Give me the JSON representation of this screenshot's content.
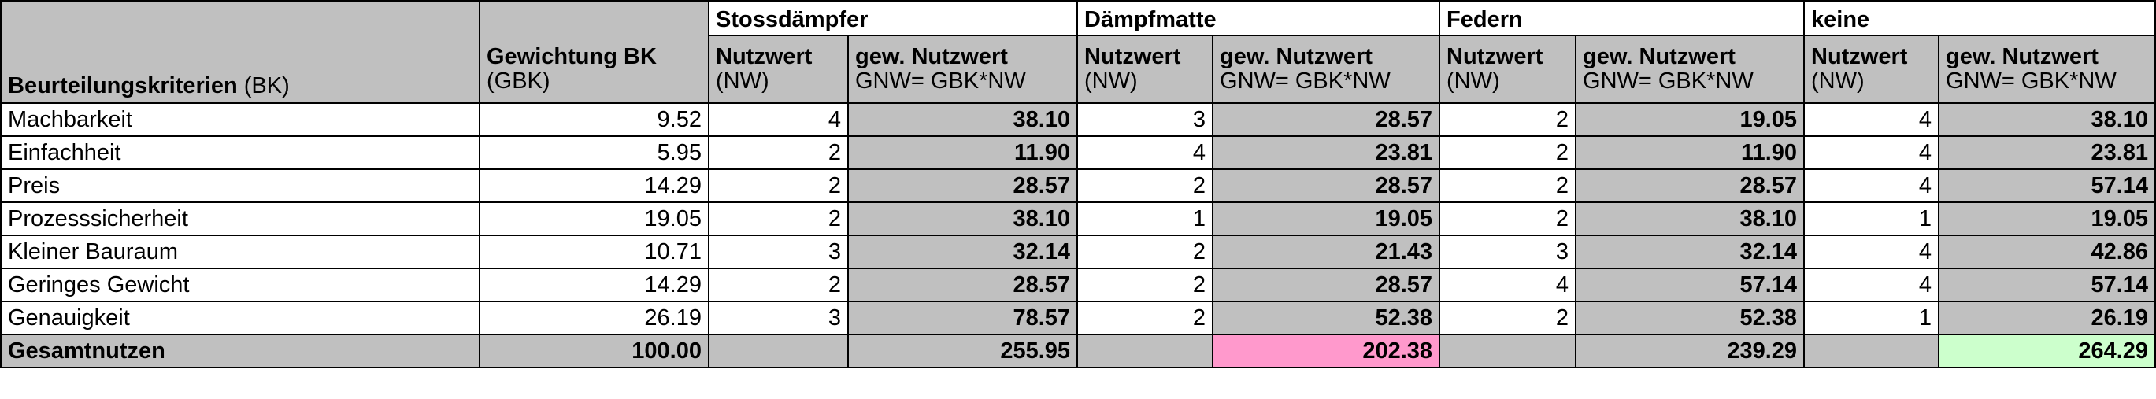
{
  "header": {
    "criteria_bold": "Beurteilungskriterien",
    "criteria_abbr": " (BK)",
    "weight_label": "Gewichtung BK",
    "weight_abbr": "(GBK)",
    "nutzwert_label": "Nutzwert",
    "nutzwert_abbr": "(NW)",
    "gnw_label": "gew. Nutzwert",
    "gnw_formula": "GNW= GBK*NW",
    "variants": [
      "Stossdämpfer",
      "Dämpfmatte",
      "Federn",
      "keine"
    ]
  },
  "rows": [
    {
      "criterion": "Machbarkeit",
      "weight": "9.52",
      "nw": [
        "4",
        "3",
        "2",
        "4"
      ],
      "gnw": [
        "38.10",
        "28.57",
        "19.05",
        "38.10"
      ]
    },
    {
      "criterion": "Einfachheit",
      "weight": "5.95",
      "nw": [
        "2",
        "4",
        "2",
        "4"
      ],
      "gnw": [
        "11.90",
        "23.81",
        "11.90",
        "23.81"
      ]
    },
    {
      "criterion": "Preis",
      "weight": "14.29",
      "nw": [
        "2",
        "2",
        "2",
        "4"
      ],
      "gnw": [
        "28.57",
        "28.57",
        "28.57",
        "57.14"
      ]
    },
    {
      "criterion": "Prozesssicherheit",
      "weight": "19.05",
      "nw": [
        "2",
        "1",
        "2",
        "1"
      ],
      "gnw": [
        "38.10",
        "19.05",
        "38.10",
        "19.05"
      ]
    },
    {
      "criterion": "Kleiner Bauraum",
      "weight": "10.71",
      "nw": [
        "3",
        "2",
        "3",
        "4"
      ],
      "gnw": [
        "32.14",
        "21.43",
        "32.14",
        "42.86"
      ]
    },
    {
      "criterion": "Geringes Gewicht",
      "weight": "14.29",
      "nw": [
        "2",
        "2",
        "4",
        "4"
      ],
      "gnw": [
        "28.57",
        "28.57",
        "57.14",
        "57.14"
      ]
    },
    {
      "criterion": "Genauigkeit",
      "weight": "26.19",
      "nw": [
        "3",
        "2",
        "2",
        "1"
      ],
      "gnw": [
        "78.57",
        "52.38",
        "52.38",
        "26.19"
      ]
    }
  ],
  "total": {
    "label": "Gesamtnutzen",
    "weight": "100.00",
    "gnw": [
      "255.95",
      "202.38",
      "239.29",
      "264.29"
    ]
  },
  "colors": {
    "header_gray": "#c0c0c0",
    "lowest_total": "#ff99cc",
    "highest_total": "#ccffcc"
  }
}
